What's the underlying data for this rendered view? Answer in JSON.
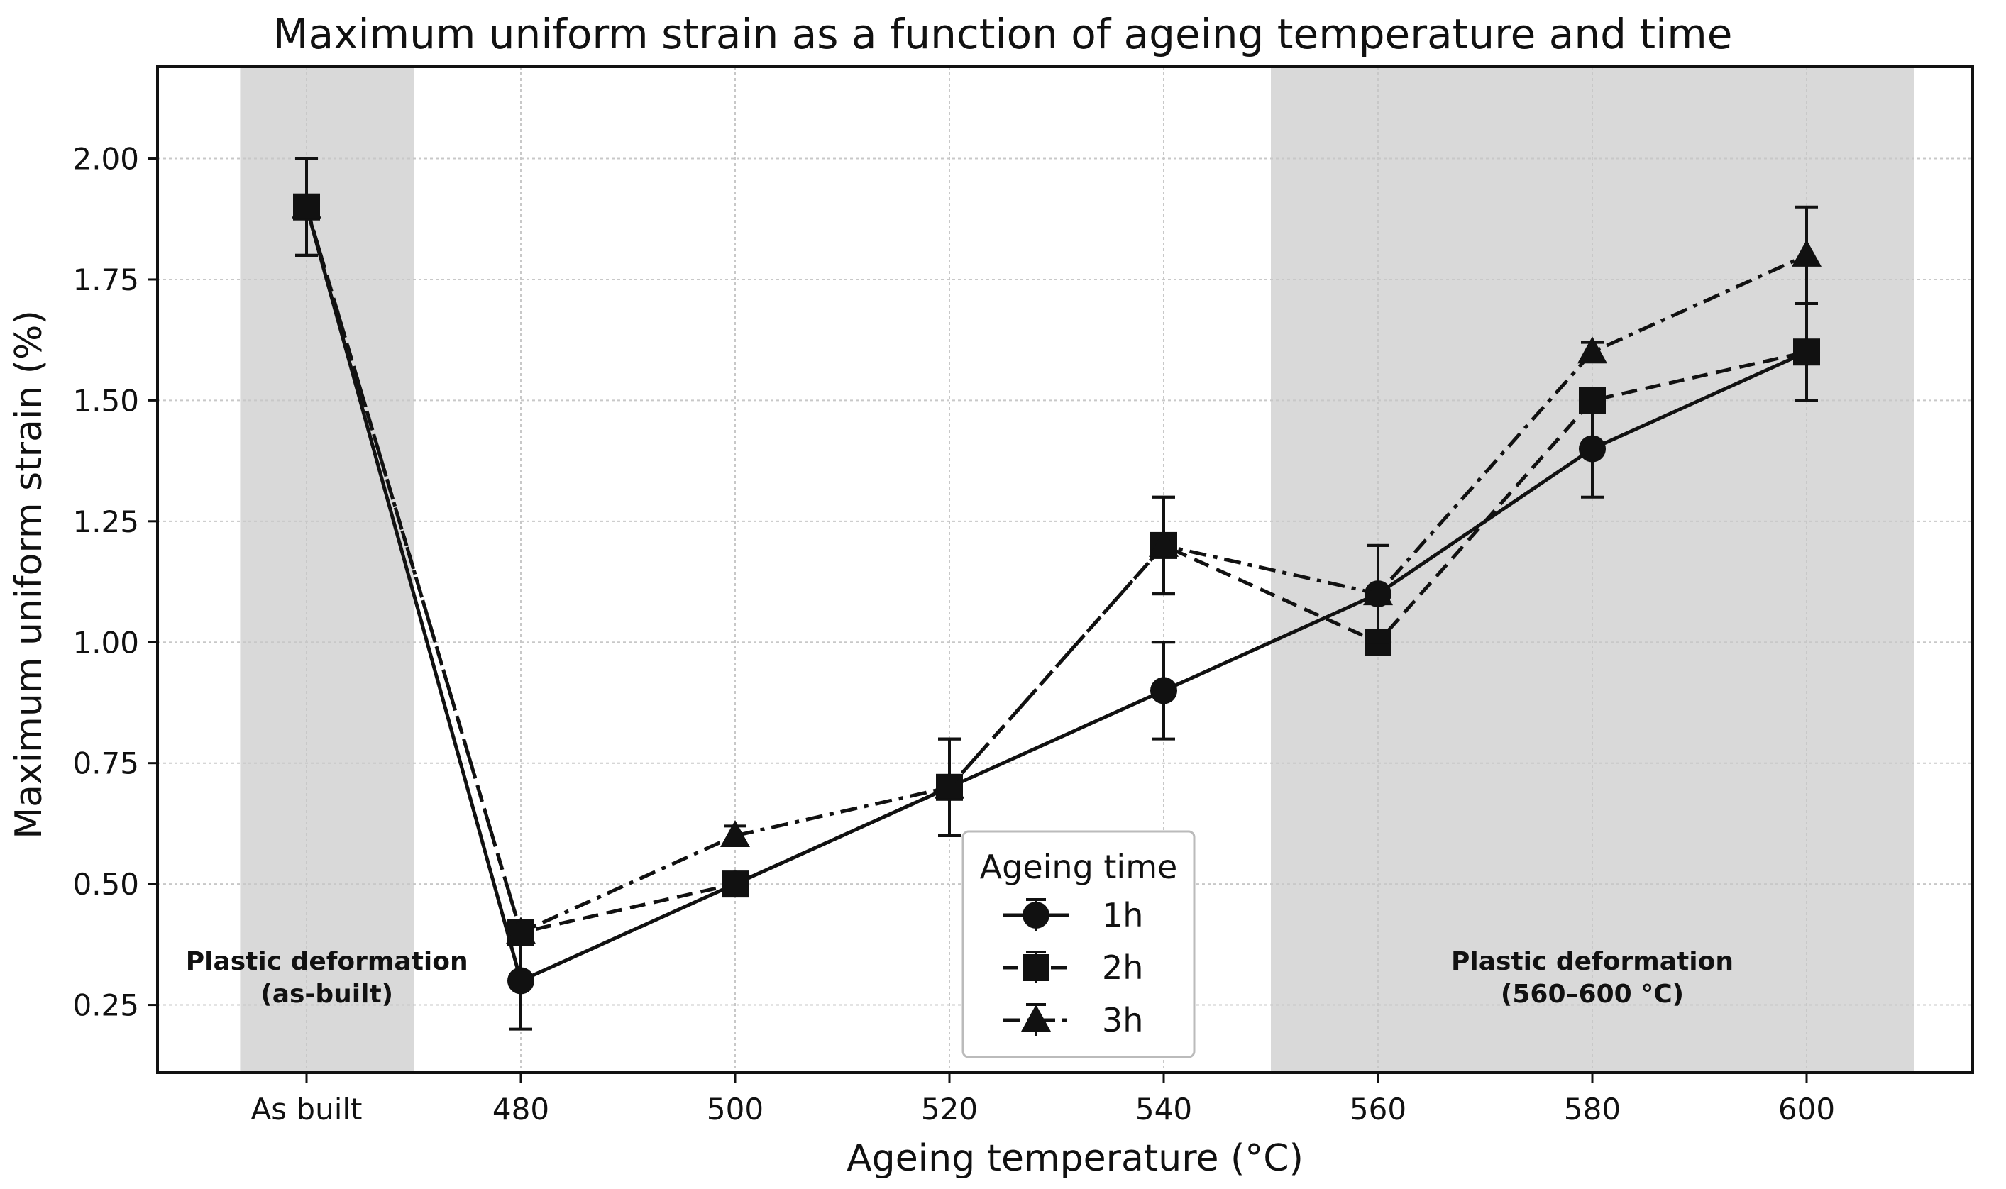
{
  "chart_data": {
    "type": "line",
    "title": "Maximum uniform strain as a function of ageing temperature and time",
    "xlabel": "Ageing temperature (°C)",
    "ylabel": "Maximum uniform strain (%)",
    "categories": [
      "As built",
      "480",
      "500",
      "520",
      "540",
      "560",
      "580",
      "600"
    ],
    "ylim": [
      0.11,
      2.19
    ],
    "yticks": [
      "0.25",
      "0.50",
      "0.75",
      "1.00",
      "1.25",
      "1.50",
      "1.75",
      "2.00"
    ],
    "ytick_values": [
      0.25,
      0.5,
      0.75,
      1.0,
      1.25,
      1.5,
      1.75,
      2.0
    ],
    "grid": true,
    "legend": {
      "title": "Ageing time",
      "placement": "lower-center"
    },
    "series": [
      {
        "name": "1h",
        "marker": "circle",
        "linestyle": "solid",
        "values": [
          1.9,
          0.3,
          0.5,
          0.7,
          0.9,
          1.1,
          1.4,
          1.6
        ],
        "errors": [
          0.1,
          0.1,
          0.0,
          0.1,
          0.1,
          0.1,
          0.1,
          0.1
        ]
      },
      {
        "name": "2h",
        "marker": "square",
        "linestyle": "dashed",
        "values": [
          1.9,
          0.4,
          0.5,
          0.7,
          1.2,
          1.0,
          1.5,
          1.6
        ],
        "errors": [
          0.1,
          0.0,
          0.0,
          0.1,
          0.1,
          0.0,
          0.0,
          0.1
        ]
      },
      {
        "name": "3h",
        "marker": "triangle",
        "linestyle": "dashdot",
        "values": [
          1.9,
          0.4,
          0.6,
          0.7,
          1.2,
          1.1,
          1.6,
          1.8
        ],
        "errors": [
          0.1,
          0.0,
          0.02,
          0.1,
          0.1,
          0.1,
          0.02,
          0.1
        ]
      }
    ],
    "shaded_regions": [
      {
        "from_index": -0.31,
        "to_index": 0.5,
        "label_line1": "Plastic deformation",
        "label_line2": "(as-built)"
      },
      {
        "from_index": 4.5,
        "to_index": 7.5,
        "label_line1": "Plastic deformation",
        "label_line2": "(560–600 °C)"
      }
    ],
    "colors": {
      "series": "#111111",
      "shade": "#d9d9d9",
      "grid": "#c8c8c8"
    }
  }
}
